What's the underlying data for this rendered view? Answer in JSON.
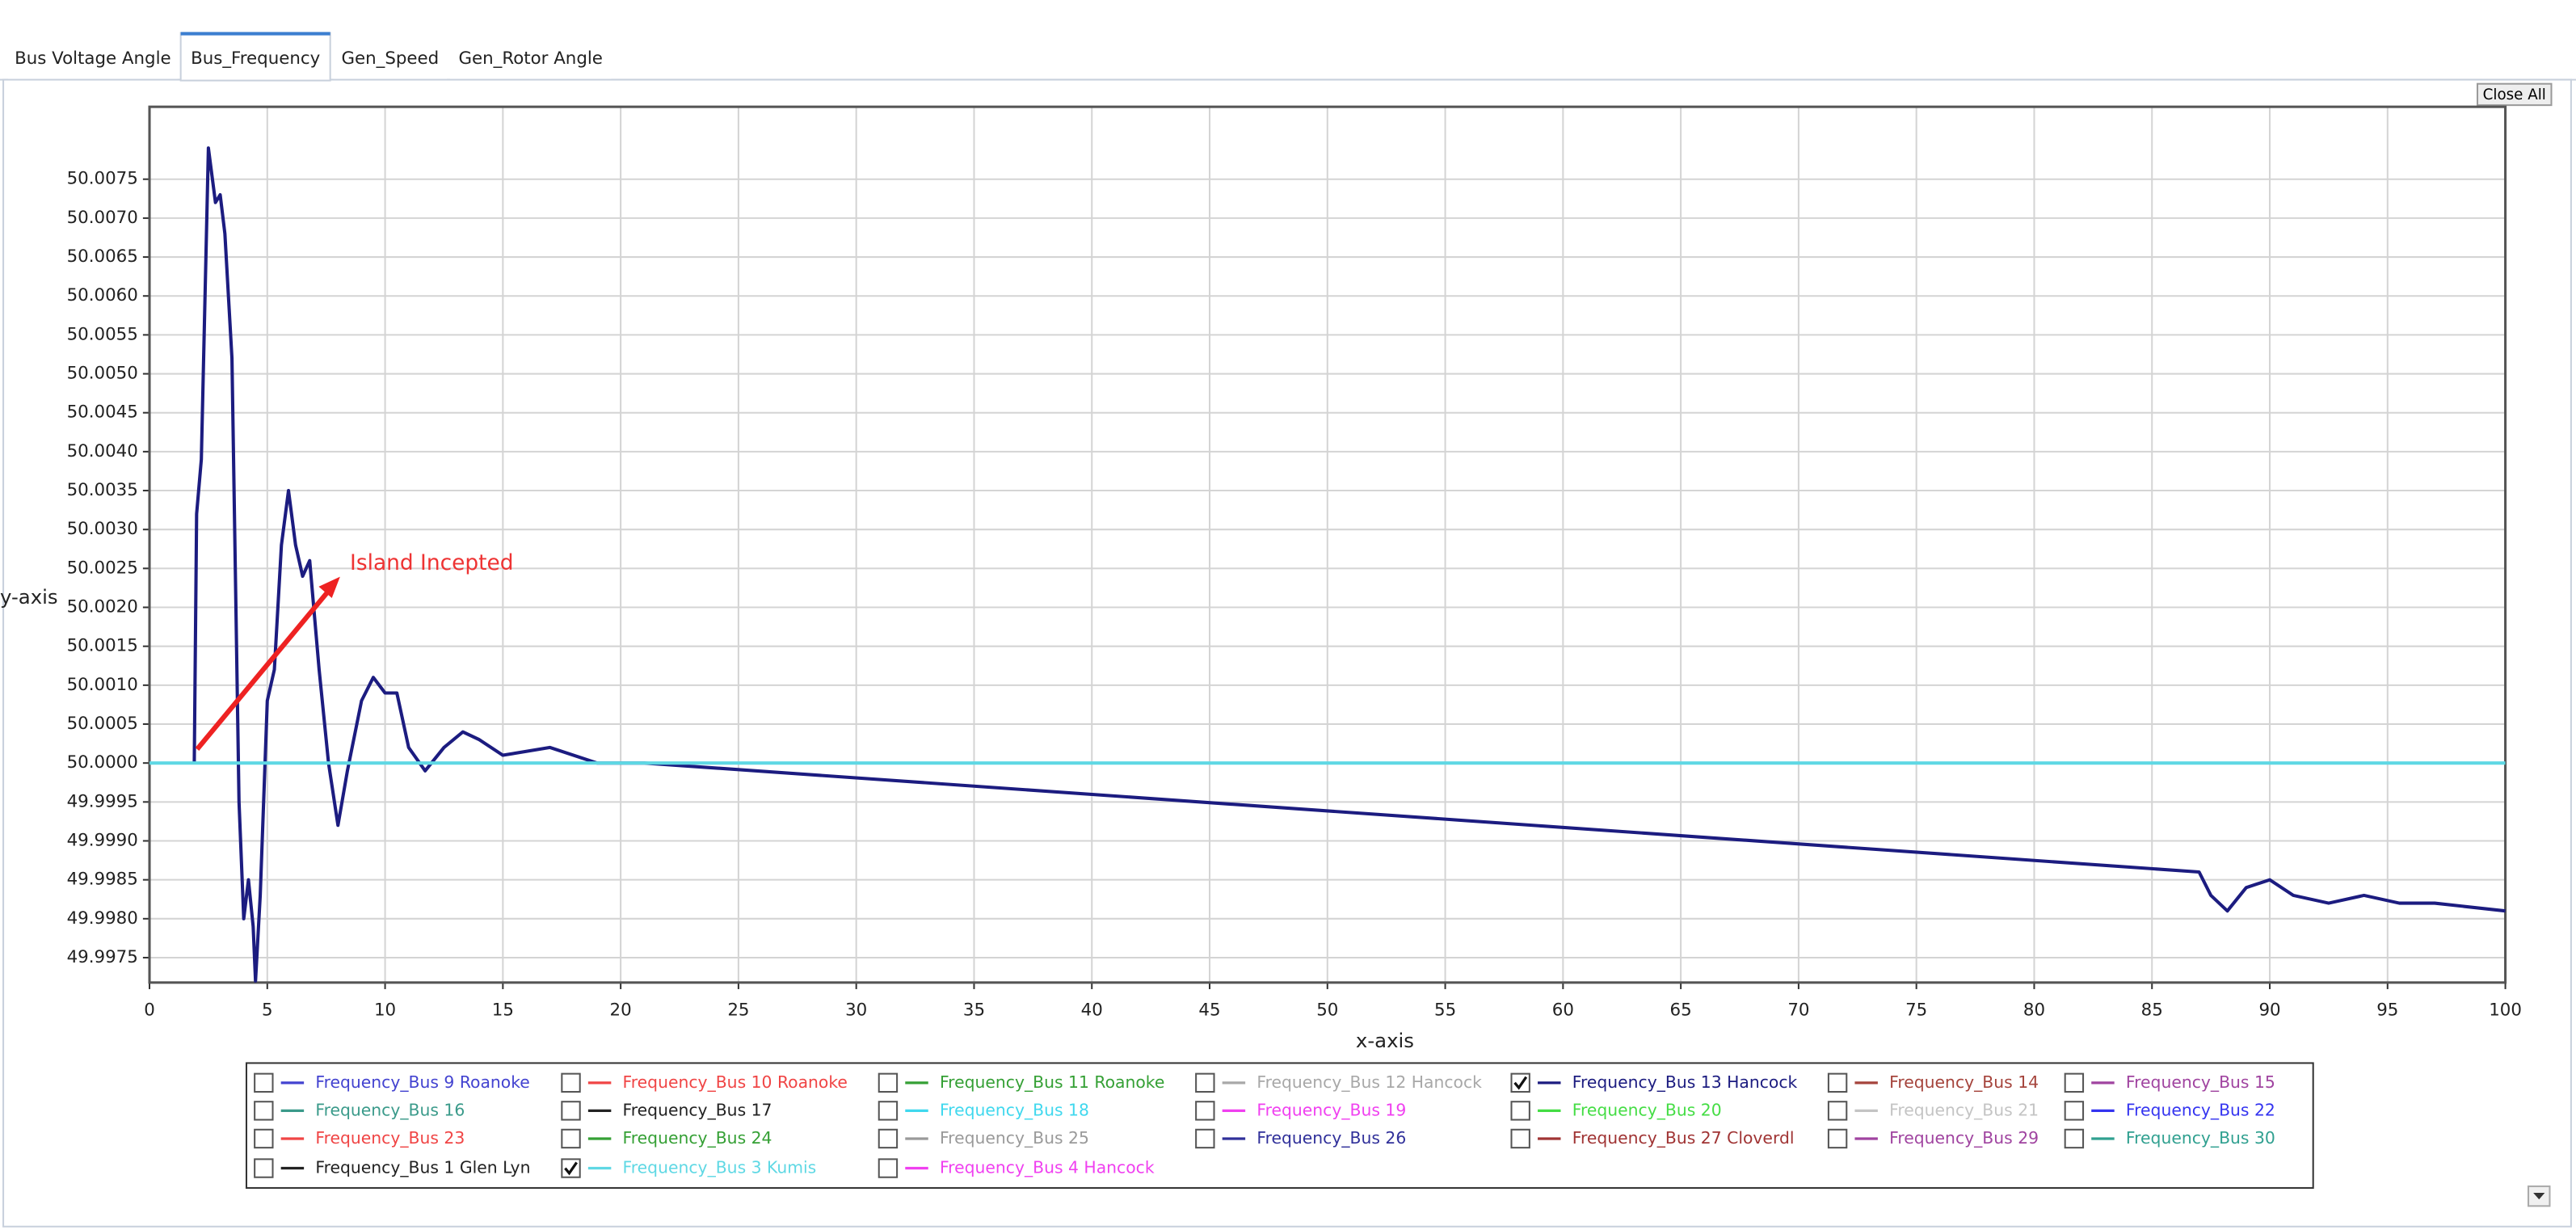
{
  "tabs": [
    {
      "label": "Bus Voltage Angle",
      "active": false
    },
    {
      "label": "Bus_Frequency",
      "active": true
    },
    {
      "label": "Gen_Speed",
      "active": false
    },
    {
      "label": "Gen_Rotor Angle",
      "active": false
    }
  ],
  "close_button": "Close All",
  "chart_data": {
    "type": "line",
    "xlabel": "x-axis",
    "ylabel": "y-axis",
    "annotation": "Island Incepted",
    "grid": true,
    "xlim": [
      0,
      100
    ],
    "xticks": [
      0,
      5,
      10,
      15,
      20,
      25,
      30,
      35,
      40,
      45,
      50,
      55,
      60,
      65,
      70,
      75,
      80,
      85,
      90,
      95,
      100
    ],
    "ylim": [
      49.99718,
      50.00843
    ],
    "yticks": [
      49.9975,
      {
        "value": 49.998,
        "label": "49.9980"
      },
      49.9985,
      {
        "value": 49.999,
        "label": "49.9990"
      },
      49.9995,
      {
        "value": 50,
        "label": "50.0000"
      },
      50.0005,
      {
        "value": 50.001,
        "label": "50.0010"
      },
      50.0015,
      {
        "value": 50.002,
        "label": "50.0020"
      },
      50.0025,
      {
        "value": 50.003,
        "label": "50.0030"
      },
      50.0035,
      {
        "value": 50.004,
        "label": "50.0040"
      },
      50.0045,
      {
        "value": 50.005,
        "label": "50.0050"
      },
      50.0055,
      {
        "value": 50.006,
        "label": "50.0060"
      },
      50.0065,
      {
        "value": 50.007,
        "label": "50.0070"
      },
      50.0075
    ],
    "series": [
      {
        "name": "Frequency_Bus 9 Roanoke",
        "color": "#4343d0",
        "checked": false
      },
      {
        "name": "Frequency_Bus 10 Roanoke",
        "color": "#f04545",
        "checked": false
      },
      {
        "name": "Frequency_Bus 11 Roanoke",
        "color": "#35a035",
        "checked": false
      },
      {
        "name": "Frequency_Bus 12 Hancock",
        "color": "#a8a8a8",
        "checked": false
      },
      {
        "name": "Frequency_Bus 13 Hancock",
        "color": "#1c1c80",
        "checked": true,
        "x": [
          1.9,
          2.0,
          2.2,
          2.5,
          2.8,
          3.0,
          3.2,
          3.5,
          3.8,
          4.0,
          4.2,
          4.4,
          4.5,
          4.7,
          5.0,
          5.3,
          5.6,
          5.9,
          6.2,
          6.5,
          6.8,
          7.2,
          7.6,
          8.0,
          8.4,
          9.0,
          9.5,
          10,
          10.5,
          11,
          11.7,
          12.5,
          13.3,
          14,
          15,
          17,
          19,
          21,
          87,
          87.5,
          88.2,
          89,
          90,
          91,
          92.5,
          94,
          95.5,
          97,
          100
        ],
        "values": [
          50.0,
          50.0032,
          50.0039,
          50.0079,
          50.0072,
          50.0073,
          50.0068,
          50.0052,
          49.9995,
          49.998,
          49.9985,
          49.9979,
          49.9972,
          49.9983,
          50.0008,
          50.0012,
          50.0028,
          50.0035,
          50.0028,
          50.0024,
          50.0026,
          50.0012,
          50.0,
          49.9992,
          49.9999,
          50.0008,
          50.0011,
          50.0009,
          50.0009,
          50.0002,
          49.9999,
          50.0002,
          50.0004,
          50.0003,
          50.0001,
          50.0002,
          50.0,
          50.0,
          49.9986,
          49.9983,
          49.9981,
          49.9984,
          49.9985,
          49.9983,
          49.9982,
          49.9983,
          49.9982,
          49.9982,
          49.9981
        ]
      },
      {
        "name": "Frequency_Bus 14",
        "color": "#a5443c",
        "checked": false
      },
      {
        "name": "Frequency_Bus 15",
        "color": "#a044a0",
        "checked": false
      },
      {
        "name": "Frequency_Bus 16",
        "color": "#3a9a8a",
        "checked": false
      },
      {
        "name": "Frequency_Bus 17",
        "color": "#222222",
        "checked": false
      },
      {
        "name": "Frequency_Bus 18",
        "color": "#40d8ee",
        "checked": false
      },
      {
        "name": "Frequency_Bus 19",
        "color": "#f040f0",
        "checked": false
      },
      {
        "name": "Frequency_Bus 20",
        "color": "#44dd44",
        "checked": false
      },
      {
        "name": "Frequency_Bus 21",
        "color": "#c4c4c4",
        "checked": false
      },
      {
        "name": "Frequency_Bus 22",
        "color": "#3434f0",
        "checked": false
      },
      {
        "name": "Frequency_Bus 23",
        "color": "#f04545",
        "checked": false
      },
      {
        "name": "Frequency_Bus 24",
        "color": "#35a035",
        "checked": false
      },
      {
        "name": "Frequency_Bus 25",
        "color": "#9a9a9a",
        "checked": false
      },
      {
        "name": "Frequency_Bus 26",
        "color": "#30309a",
        "checked": false
      },
      {
        "name": "Frequency_Bus 27 Cloverdl",
        "color": "#a03434",
        "checked": false
      },
      {
        "name": "Frequency_Bus 29",
        "color": "#a044a0",
        "checked": false
      },
      {
        "name": "Frequency_Bus 30",
        "color": "#30a090",
        "checked": false
      },
      {
        "name": "Frequency_Bus 1 Glen Lyn",
        "color": "#222222",
        "checked": false
      },
      {
        "name": "Frequency_Bus 3 Kumis",
        "color": "#5fd8e4",
        "checked": true,
        "x": [
          0,
          100
        ],
        "values": [
          50.0,
          50.0
        ]
      },
      {
        "name": "Frequency_Bus 4 Hancock",
        "color": "#f040f0",
        "checked": false
      }
    ]
  }
}
